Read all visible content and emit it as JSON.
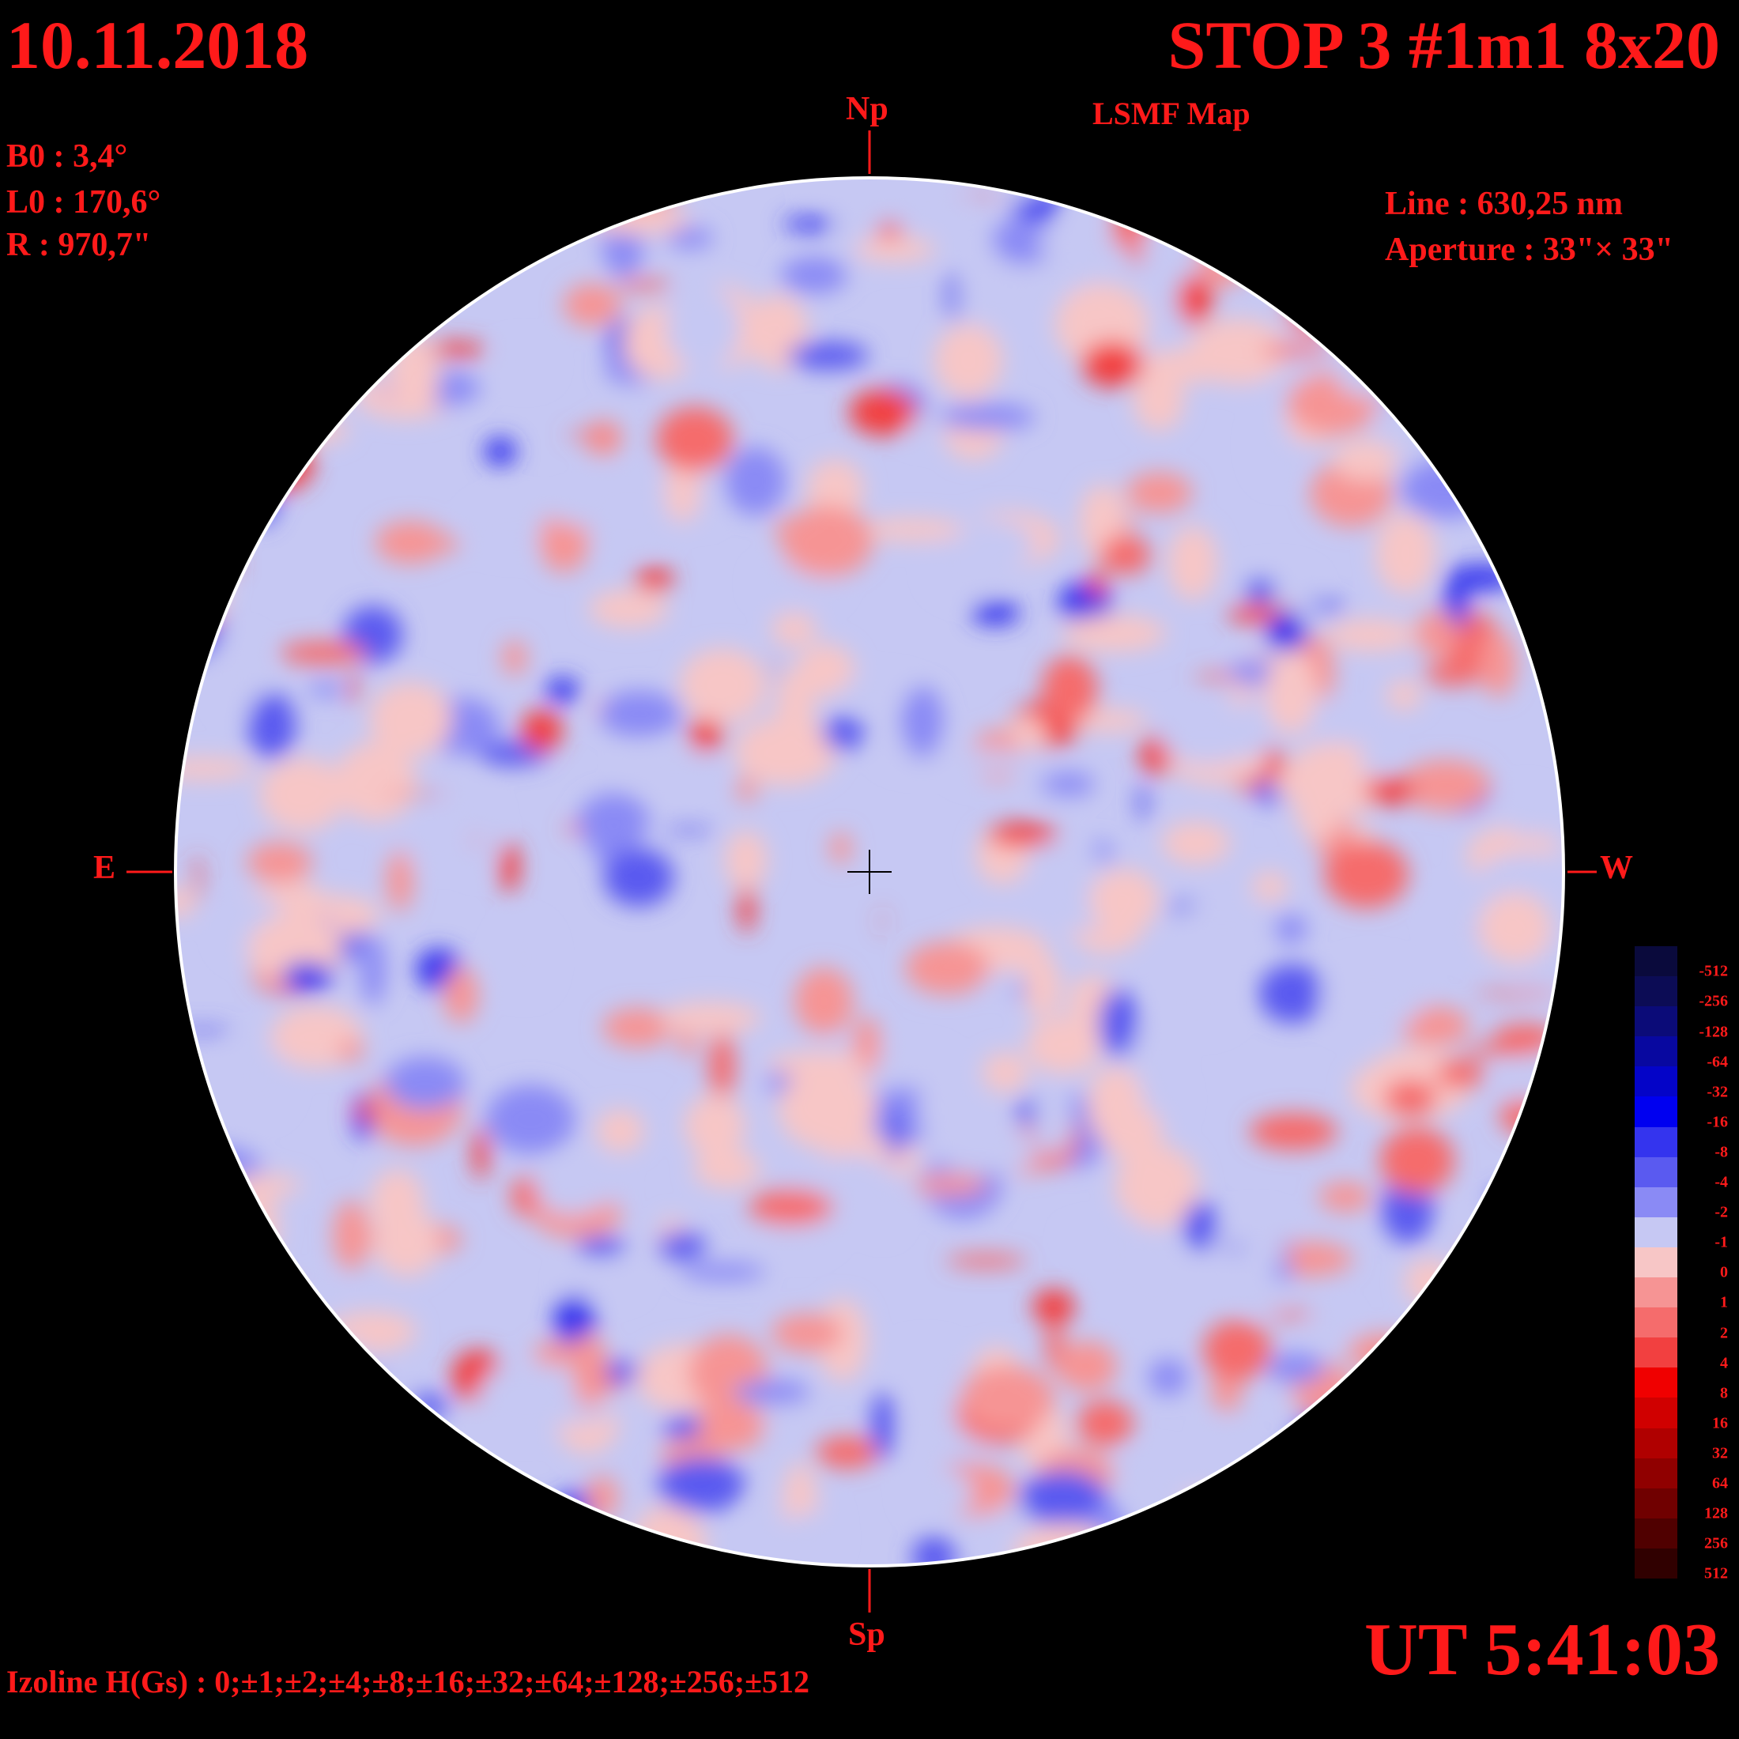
{
  "header": {
    "date": "10.11.2018",
    "title": "STOP 3 #1m1 8x20",
    "subtitle": "LSMF  Map"
  },
  "params": {
    "b0": "B0 : 3,4°",
    "l0": "L0 : 170,6°",
    "r": "R  : 970,7\""
  },
  "instrument": {
    "line": "Line :  630,25 nm",
    "aperture": "Aperture : 33\"× 33\""
  },
  "directions": {
    "north": "Np",
    "south": "Sp",
    "east": "E",
    "west": "W"
  },
  "time": "UT 5:41:03",
  "izoline": "Izoline H(Gs) : 0;±1;±2;±4;±8;±16;±32;±64;±128;±256;±512",
  "legend": {
    "levels": [
      "-512",
      "-256",
      "-128",
      "-64",
      "-32",
      "-16",
      "-8",
      "-4",
      "-2",
      "-1",
      "0",
      "1",
      "2",
      "4",
      "8",
      "16",
      "32",
      "64",
      "128",
      "256",
      "512"
    ],
    "colors": [
      "#0a0a3c",
      "#0c0c55",
      "#0b0b78",
      "#0808a0",
      "#0404c8",
      "#0000f0",
      "#3434ee",
      "#5a5af0",
      "#8a8af5",
      "#c6c8f3",
      "#f7c6c6",
      "#f69494",
      "#f56c6c",
      "#f24040",
      "#f00000",
      "#d00000",
      "#b00000",
      "#900000",
      "#700000",
      "#500000",
      "#300000"
    ]
  },
  "colors": {
    "text": "#ff1a1a",
    "background": "#000000",
    "disk_border": "#ffffff"
  }
}
